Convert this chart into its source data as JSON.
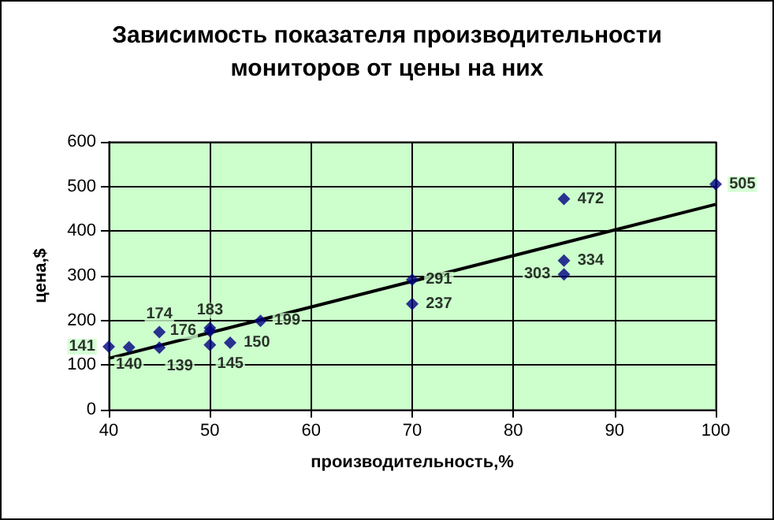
{
  "chart_data": {
    "type": "scatter",
    "title": "Зависимость показателя производительности\nмониторов от цены на них",
    "xlabel": "производительность,%",
    "ylabel": "цена,$",
    "xlim": [
      40,
      100
    ],
    "xticks": [
      40,
      50,
      60,
      70,
      80,
      90,
      100
    ],
    "ylim": [
      0,
      600
    ],
    "yticks": [
      0,
      100,
      200,
      300,
      400,
      500,
      600
    ],
    "grid": true,
    "series": [
      {
        "color": "#000080",
        "marker": "diamond",
        "x": [
          40,
          42,
          45,
          45,
          50,
          50,
          50,
          52,
          55,
          70,
          70,
          85,
          85,
          85,
          100
        ],
        "values": [
          141,
          140,
          174,
          139,
          183,
          176,
          145,
          150,
          199,
          291,
          237,
          472,
          334,
          303,
          505
        ],
        "value_labels": [
          "141",
          "140",
          "174",
          "139",
          "183",
          "176",
          "145",
          "150",
          "199",
          "291",
          "237",
          "472",
          "334",
          "303",
          "505"
        ]
      },
      {
        "type": "line",
        "color": "#000000",
        "x": [
          40,
          100
        ],
        "values": [
          115,
          460
        ]
      }
    ]
  }
}
